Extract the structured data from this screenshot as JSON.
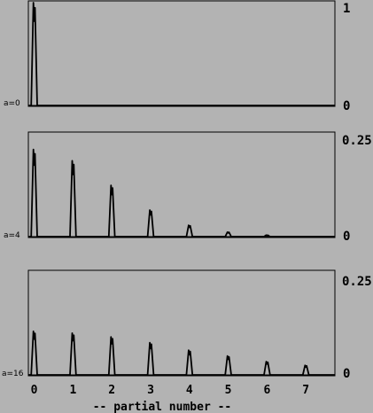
{
  "chart_data": [
    {
      "type": "line",
      "panel_label": "a=0",
      "x_range": [
        -0.15,
        7.75
      ],
      "ylim": [
        0,
        1
      ],
      "y_ticks": [
        "0",
        "1"
      ],
      "peaks": [
        {
          "x": 0,
          "y": 1.0
        }
      ],
      "line_color": "#000000"
    },
    {
      "type": "line",
      "panel_label": "a=4",
      "x_range": [
        -0.15,
        7.75
      ],
      "ylim": [
        0,
        0.25
      ],
      "y_ticks": [
        "0",
        "0.25"
      ],
      "peaks": [
        {
          "x": 0,
          "y": 0.23
        },
        {
          "x": 1,
          "y": 0.2
        },
        {
          "x": 2,
          "y": 0.135
        },
        {
          "x": 3,
          "y": 0.07
        },
        {
          "x": 4,
          "y": 0.03
        },
        {
          "x": 5,
          "y": 0.012
        },
        {
          "x": 6,
          "y": 0.004
        }
      ],
      "line_color": "#000000"
    },
    {
      "type": "line",
      "panel_label": "a=16",
      "x_range": [
        -0.15,
        7.75
      ],
      "ylim": [
        0,
        0.25
      ],
      "y_ticks": [
        "0",
        "0.25"
      ],
      "peaks": [
        {
          "x": 0,
          "y": 0.115
        },
        {
          "x": 1,
          "y": 0.11
        },
        {
          "x": 2,
          "y": 0.1
        },
        {
          "x": 3,
          "y": 0.085
        },
        {
          "x": 4,
          "y": 0.065
        },
        {
          "x": 5,
          "y": 0.05
        },
        {
          "x": 6,
          "y": 0.035
        },
        {
          "x": 7,
          "y": 0.025
        }
      ],
      "line_color": "#000000"
    }
  ],
  "x_ticks": [
    "0",
    "1",
    "2",
    "3",
    "4",
    "5",
    "6",
    "7"
  ],
  "xlabel": "-- partial number --"
}
